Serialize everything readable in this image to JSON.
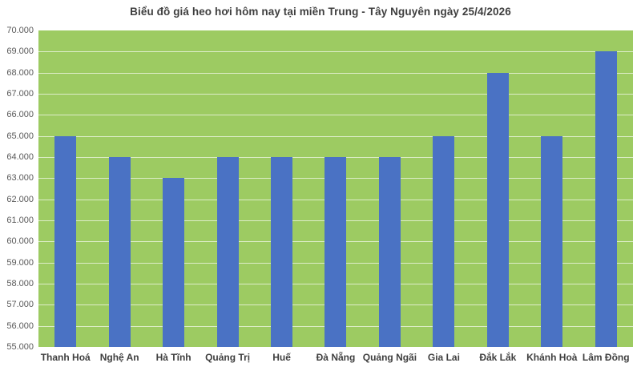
{
  "chart": {
    "title": "Biểu đồ giá heo hơi hôm nay tại miền Trung - Tây Nguyên ngày 25/4/2026"
  },
  "chart_data": {
    "type": "bar",
    "title": "Biểu đồ giá heo hơi hôm nay tại miền Trung - Tây Nguyên ngày 25/4/2026",
    "categories": [
      "Thanh Hoá",
      "Nghệ An",
      "Hà Tĩnh",
      "Quảng Trị",
      "Huế",
      "Đà Nẵng",
      "Quảng Ngãi",
      "Gia Lai",
      "Đắk Lắk",
      "Khánh Hoà",
      "Lâm Đồng"
    ],
    "values": [
      65000,
      64000,
      63000,
      64000,
      64000,
      64000,
      64000,
      65000,
      68000,
      65000,
      69000
    ],
    "xlabel": "",
    "ylabel": "",
    "ylim": [
      55000,
      70000
    ],
    "y_tick_step": 1000,
    "y_tick_labels": [
      "70.000",
      "69.000",
      "68.000",
      "67.000",
      "66.000",
      "65.000",
      "64.000",
      "63.000",
      "62.000",
      "61.000",
      "60.000",
      "59.000",
      "58.000",
      "57.000",
      "56.000",
      "55.000"
    ],
    "grid": "horizontal",
    "legend": "none",
    "colors": {
      "bar": "#4A72C4",
      "plot_background": "#9DCB62",
      "gridline": "rgba(255,255,255,0.65)",
      "title_text": "#3F3F3F",
      "axis_text": "#595959",
      "category_text": "#3F3F3F",
      "page_background": "#FFFFFF"
    }
  }
}
